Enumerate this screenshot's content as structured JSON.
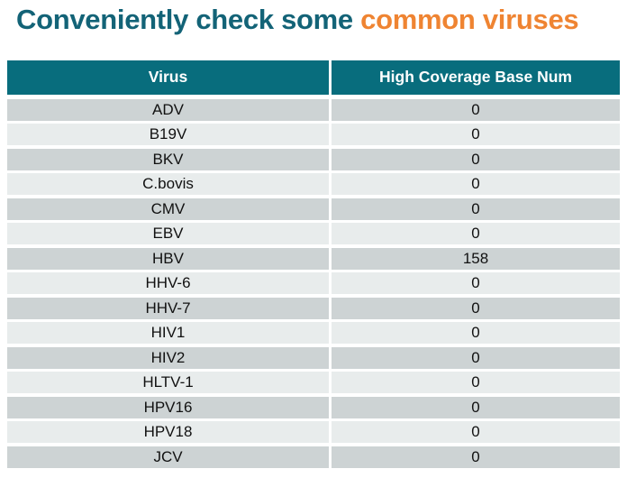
{
  "title": {
    "teal_part": "Conveniently check some ",
    "orange_part": "common viruses"
  },
  "colors": {
    "title_teal": "#136377",
    "title_orange": "#ef8432",
    "header_background": "#086d7d",
    "header_text": "#ffffff",
    "row_dark": "#cdd3d4",
    "row_light": "#e8ecec"
  },
  "table": {
    "headers": [
      "Virus",
      "High Coverage Base Num"
    ],
    "rows": [
      {
        "virus": "ADV",
        "value": "0"
      },
      {
        "virus": "B19V",
        "value": "0"
      },
      {
        "virus": "BKV",
        "value": "0"
      },
      {
        "virus": "C.bovis",
        "value": "0"
      },
      {
        "virus": "CMV",
        "value": "0"
      },
      {
        "virus": "EBV",
        "value": "0"
      },
      {
        "virus": "HBV",
        "value": "158"
      },
      {
        "virus": "HHV-6",
        "value": "0"
      },
      {
        "virus": "HHV-7",
        "value": "0"
      },
      {
        "virus": "HIV1",
        "value": "0"
      },
      {
        "virus": "HIV2",
        "value": "0"
      },
      {
        "virus": "HLTV-1",
        "value": "0"
      },
      {
        "virus": "HPV16",
        "value": "0"
      },
      {
        "virus": "HPV18",
        "value": "0"
      },
      {
        "virus": "JCV",
        "value": "0"
      }
    ]
  }
}
